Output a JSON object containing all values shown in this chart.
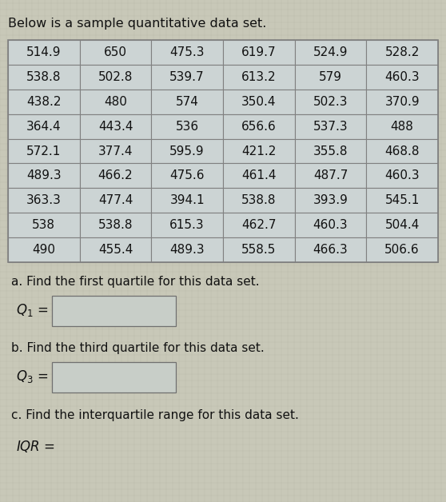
{
  "title": "Below is a sample quantitative data set.",
  "table_data": [
    [
      "514.9",
      "650",
      "475.3",
      "619.7",
      "524.9",
      "528.2"
    ],
    [
      "538.8",
      "502.8",
      "539.7",
      "613.2",
      "579",
      "460.3"
    ],
    [
      "438.2",
      "480",
      "574",
      "350.4",
      "502.3",
      "370.9"
    ],
    [
      "364.4",
      "443.4",
      "536",
      "656.6",
      "537.3",
      "488"
    ],
    [
      "572.1",
      "377.4",
      "595.9",
      "421.2",
      "355.8",
      "468.8"
    ],
    [
      "489.3",
      "466.2",
      "475.6",
      "461.4",
      "487.7",
      "460.3"
    ],
    [
      "363.3",
      "477.4",
      "394.1",
      "538.8",
      "393.9",
      "545.1"
    ],
    [
      "538",
      "538.8",
      "615.3",
      "462.7",
      "460.3",
      "504.4"
    ],
    [
      "490",
      "455.4",
      "489.3",
      "558.5",
      "466.3",
      "506.6"
    ]
  ],
  "part_a_label": "a. Find the first quartile for this data set.",
  "part_a_var": "$Q_1$ =",
  "part_b_label": "b. Find the third quartile for this data set.",
  "part_b_var": "$Q_3$ =",
  "part_c_label": "c. Find the interquartile range for this data set.",
  "part_c_var": "IQR =",
  "bg_color": "#c8c8b8",
  "table_cell_bg": "#ccd4d4",
  "border_color": "#808080",
  "text_color": "#111111",
  "box_color": "#c8cec8",
  "title_fontsize": 11.5,
  "body_fontsize": 11,
  "cell_fontsize": 11
}
